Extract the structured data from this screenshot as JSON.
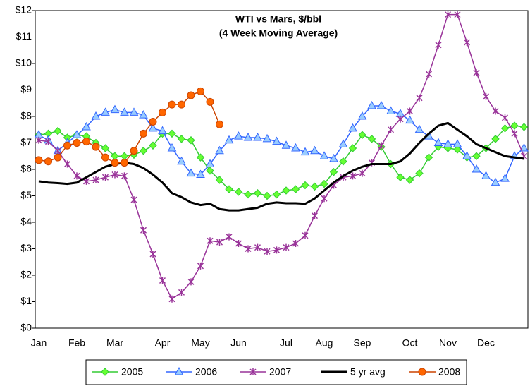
{
  "chart_data": {
    "type": "line",
    "title": [
      "WTI vs Mars, $/bbl",
      "(4 Week Moving Average)"
    ],
    "categories": [
      "Jan",
      null,
      null,
      null,
      "Feb",
      null,
      null,
      null,
      "Mar",
      null,
      null,
      null,
      null,
      "Apr",
      null,
      null,
      null,
      "May",
      null,
      null,
      null,
      "Jun",
      null,
      null,
      null,
      null,
      "Jul",
      null,
      null,
      null,
      "Aug",
      null,
      null,
      null,
      "Sep",
      null,
      null,
      null,
      null,
      "Oct",
      null,
      null,
      null,
      "Nov",
      null,
      null,
      null,
      "Dec",
      null,
      null,
      null,
      null
    ],
    "ylim": [
      0,
      12
    ],
    "yticks": [
      {
        "value": 0,
        "label": "$0"
      },
      {
        "value": 1,
        "label": "$1"
      },
      {
        "value": 2,
        "label": "$2"
      },
      {
        "value": 3,
        "label": "$3"
      },
      {
        "value": 4,
        "label": "$4"
      },
      {
        "value": 5,
        "label": "$5"
      },
      {
        "value": 6,
        "label": "$6"
      },
      {
        "value": 7,
        "label": "$7"
      },
      {
        "value": 8,
        "label": "$8"
      },
      {
        "value": 9,
        "label": "$9"
      },
      {
        "value": 10,
        "label": "$10"
      },
      {
        "value": 11,
        "label": "$11"
      },
      {
        "value": 12,
        "label": "$12"
      }
    ],
    "grid": false,
    "legend": "bottom",
    "series": [
      {
        "name": "2005",
        "color": "#33cc33",
        "marker": "diamond",
        "values": [
          7.3,
          7.35,
          7.45,
          7.2,
          7.3,
          7.25,
          7.0,
          6.8,
          6.5,
          6.5,
          6.55,
          6.7,
          6.9,
          7.35,
          7.35,
          7.15,
          7.1,
          6.45,
          5.95,
          5.6,
          5.25,
          5.15,
          5.05,
          5.1,
          5.0,
          5.05,
          5.2,
          5.25,
          5.4,
          5.35,
          5.45,
          5.9,
          6.3,
          6.8,
          7.3,
          7.15,
          6.85,
          6.2,
          5.7,
          5.6,
          5.85,
          6.45,
          6.85,
          6.8,
          6.75,
          6.45,
          6.5,
          6.8,
          7.15,
          7.55,
          7.65,
          7.6
        ]
      },
      {
        "name": "2006",
        "color": "#3366ff",
        "marker": "triangle",
        "values": [
          7.3,
          7.1,
          6.7,
          7.0,
          7.3,
          7.6,
          8.0,
          8.15,
          8.25,
          8.15,
          8.15,
          8.05,
          7.55,
          7.45,
          6.8,
          6.3,
          5.85,
          5.8,
          6.2,
          6.7,
          7.1,
          7.25,
          7.2,
          7.2,
          7.15,
          7.05,
          6.9,
          6.8,
          6.65,
          6.7,
          6.5,
          6.4,
          6.95,
          7.55,
          8.0,
          8.4,
          8.4,
          8.2,
          8.1,
          7.85,
          7.5,
          7.25,
          7.0,
          6.95,
          6.95,
          6.5,
          6.0,
          5.75,
          5.5,
          5.65,
          6.5,
          6.8
        ]
      },
      {
        "name": "2007",
        "color": "#993399",
        "marker": "star",
        "values": [
          7.1,
          7.05,
          6.7,
          6.2,
          5.75,
          5.55,
          5.6,
          5.7,
          5.8,
          5.75,
          4.85,
          3.7,
          2.8,
          1.8,
          1.1,
          1.35,
          1.75,
          2.35,
          3.3,
          3.25,
          3.45,
          3.2,
          3.0,
          3.05,
          2.9,
          2.95,
          3.05,
          3.2,
          3.5,
          4.25,
          4.9,
          5.4,
          5.7,
          5.75,
          5.85,
          6.25,
          6.9,
          7.5,
          7.9,
          8.2,
          8.7,
          9.6,
          10.7,
          11.85,
          11.85,
          10.8,
          9.65,
          8.75,
          8.2,
          7.95,
          7.35,
          6.5
        ]
      },
      {
        "name": "5 yr avg",
        "color": "#000000",
        "marker": "none",
        "values": [
          5.55,
          5.5,
          5.48,
          5.45,
          5.5,
          5.7,
          5.9,
          6.1,
          6.2,
          6.25,
          6.2,
          6.05,
          5.8,
          5.5,
          5.1,
          4.95,
          4.75,
          4.65,
          4.7,
          4.5,
          4.45,
          4.45,
          4.5,
          4.55,
          4.7,
          4.75,
          4.72,
          4.72,
          4.7,
          4.9,
          5.2,
          5.5,
          5.75,
          5.95,
          6.1,
          6.2,
          6.2,
          6.2,
          6.3,
          6.6,
          7.0,
          7.35,
          7.65,
          7.75,
          7.5,
          7.25,
          6.95,
          6.8,
          6.65,
          6.5,
          6.45,
          6.4
        ]
      },
      {
        "name": "2008",
        "color": "#cc4400",
        "marker": "circle",
        "values": [
          6.35,
          6.3,
          6.45,
          6.9,
          7.0,
          7.05,
          6.85,
          6.45,
          6.25,
          6.25,
          6.7,
          7.35,
          7.8,
          8.15,
          8.45,
          8.45,
          8.8,
          8.95,
          8.55,
          7.7,
          null,
          null,
          null,
          null,
          null,
          null,
          null,
          null,
          null,
          null,
          null,
          null,
          null,
          null,
          null,
          null,
          null,
          null,
          null,
          null,
          null,
          null,
          null,
          null,
          null,
          null,
          null,
          null,
          null,
          null,
          null,
          null
        ]
      }
    ]
  }
}
